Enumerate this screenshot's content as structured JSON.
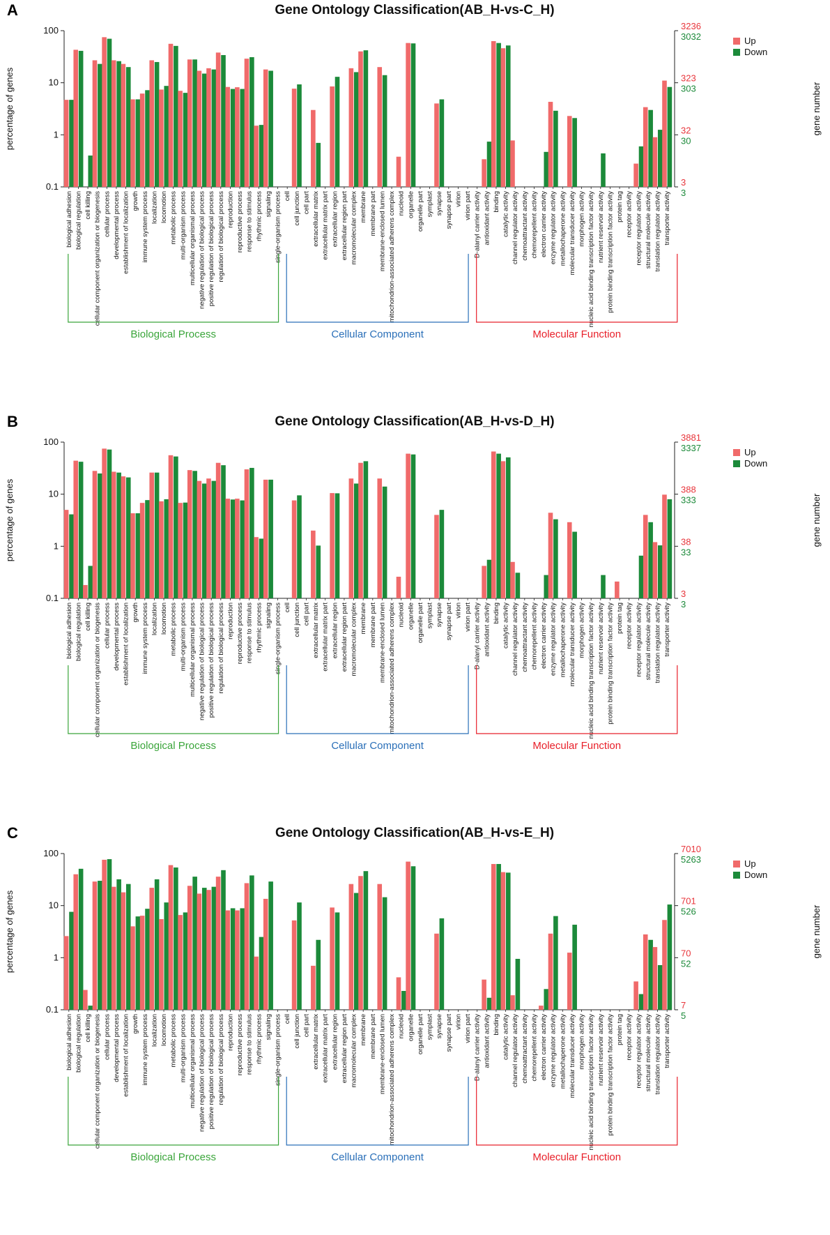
{
  "categories": [
    "biological adhesion",
    "biological regulation",
    "cell killing",
    "cellular component organization or biogenesis",
    "cellular process",
    "developmental process",
    "establishment of localization",
    "growth",
    "immune system process",
    "localization",
    "locomotion",
    "metabolic process",
    "multi-organism process",
    "multicellular organismal process",
    "negative regulation of biological process",
    "positive regulation of biological process",
    "regulation of biological process",
    "reproduction",
    "reproductive process",
    "response to stimulus",
    "rhythmic process",
    "signaling",
    "single-organism process",
    "cell",
    "cell junction",
    "cell part",
    "extracellular matrix",
    "extracellular matrix part",
    "extracellular region",
    "extracellular region part",
    "macromolecular complex",
    "membrane",
    "membrane part",
    "membrane-enclosed lumen",
    "mitochondrion-associated adherens complex",
    "nucleoid",
    "organelle",
    "organelle part",
    "symplast",
    "synapse",
    "synapse part",
    "virion",
    "virion part",
    "D-alanyl carrier activity",
    "antioxidant activity",
    "binding",
    "catalytic activity",
    "channel regulator activity",
    "chemoattractant activity",
    "chemorepellent activity",
    "electron carrier activity",
    "enzyme regulator activity",
    "metallochaperone activity",
    "molecular transducer activity",
    "morphogen activity",
    "nucleic acid binding transcription factor activity",
    "nutrient reservoir activity",
    "protein binding transcription factor activity",
    "protein tag",
    "receptor activity",
    "receptor regulator activity",
    "structural molecule activity",
    "translation regulator activity",
    "transporter activity"
  ],
  "groups": [
    {
      "name": "Biological Process",
      "start": 0,
      "end": 22,
      "color": "#3aa53a"
    },
    {
      "name": "Cellular Component",
      "start": 23,
      "end": 42,
      "color": "#2a6fb8"
    },
    {
      "name": "Molecular Function",
      "start": 43,
      "end": 64,
      "color": "#e8202a"
    }
  ],
  "legend": {
    "up": "Up",
    "down": "Down"
  },
  "colors": {
    "up": "#f06a6a",
    "down": "#1c8a3a",
    "up_axis": "#e8353b",
    "down_axis": "#1c8a3a"
  },
  "chart_data": [
    {
      "label": "A",
      "type": "bar",
      "title": "Gene Ontology Classification(AB_H-vs-C_H)",
      "ylabel": "percentage of genes",
      "y2label": "gene number",
      "yticks": [
        "100",
        "10",
        "1",
        "0.1"
      ],
      "y2ticks_up": [
        "3236",
        "323",
        "32",
        "3"
      ],
      "y2ticks_down": [
        "3032",
        "303",
        "30",
        "3"
      ],
      "ylim": [
        0.1,
        100
      ],
      "series": [
        {
          "name": "Up",
          "values": [
            4.7,
            43,
            0,
            27,
            75,
            27,
            23,
            4.8,
            6.2,
            27,
            7.4,
            56,
            7,
            28,
            17,
            19,
            38,
            8.3,
            8.2,
            29,
            1.5,
            18,
            0,
            0,
            7.7,
            0,
            3,
            0,
            8.5,
            0,
            19,
            40,
            0,
            20,
            0,
            0.38,
            58,
            0,
            0,
            4,
            0,
            0,
            0,
            0,
            0.34,
            63,
            46,
            0.78,
            0,
            0,
            0,
            4.3,
            0,
            2.3,
            0,
            0,
            0,
            0,
            0,
            0,
            0.28,
            3.4,
            0.9,
            11
          ]
        },
        {
          "name": "Down",
          "values": [
            4.7,
            41,
            0.4,
            23,
            70,
            26,
            20,
            4.8,
            7.2,
            25,
            8.7,
            51,
            6.4,
            28,
            15,
            18,
            34,
            7.6,
            7.6,
            31,
            1.55,
            17,
            0,
            0,
            9.3,
            0,
            0.7,
            0,
            13,
            0,
            16,
            42,
            0,
            14,
            0,
            0,
            57,
            0,
            0,
            4.8,
            0,
            0,
            0,
            0,
            0.74,
            58,
            52,
            0,
            0,
            0,
            0.47,
            2.9,
            0,
            2.1,
            0,
            0,
            0.44,
            0,
            0,
            0,
            0.6,
            3,
            1.25,
            8.3
          ]
        }
      ]
    },
    {
      "label": "B",
      "type": "bar",
      "title": "Gene Ontology Classification(AB_H-vs-D_H)",
      "ylabel": "percentage of genes",
      "y2label": "gene number",
      "yticks": [
        "100",
        "10",
        "1",
        "0.1"
      ],
      "y2ticks_up": [
        "3881",
        "388",
        "38",
        "3"
      ],
      "y2ticks_down": [
        "3337",
        "333",
        "33",
        "3"
      ],
      "ylim": [
        0.1,
        100
      ],
      "series": [
        {
          "name": "Up",
          "values": [
            5,
            44,
            0.18,
            28,
            75,
            27,
            22,
            4.3,
            6.8,
            26,
            7.3,
            56,
            6.8,
            29,
            18,
            20,
            40,
            8.2,
            8.2,
            30,
            1.5,
            19,
            0,
            0,
            7.6,
            0,
            2,
            0,
            10.5,
            0,
            20,
            40,
            0,
            20,
            0,
            0.26,
            60,
            0,
            0,
            4,
            0,
            0,
            0,
            0,
            0.42,
            66,
            43,
            0.5,
            0,
            0,
            0,
            4.4,
            0,
            2.9,
            0,
            0,
            0,
            0,
            0.21,
            0,
            0,
            4,
            1.2,
            9.8
          ]
        },
        {
          "name": "Down",
          "values": [
            4.1,
            42,
            0.42,
            25,
            72,
            26,
            21,
            4.3,
            7.7,
            26,
            8,
            53,
            6.9,
            28,
            16,
            18,
            36,
            7.9,
            7.6,
            32,
            1.4,
            19,
            0,
            0,
            9.5,
            0,
            1.03,
            0,
            10.4,
            0,
            16,
            43,
            0,
            14,
            0,
            0,
            58,
            0,
            0,
            5,
            0,
            0,
            0,
            0,
            0.55,
            60,
            51,
            0.31,
            0,
            0,
            0.28,
            3.3,
            0,
            1.9,
            0,
            0,
            0.28,
            0,
            0,
            0,
            0.66,
            2.9,
            1.04,
            8
          ]
        }
      ]
    },
    {
      "label": "C",
      "type": "bar",
      "title": "Gene Ontology Classification(AB_H-vs-E_H)",
      "ylabel": "percentage of genes",
      "y2label": "gene number",
      "yticks": [
        "100",
        "10",
        "1",
        "0.1"
      ],
      "y2ticks_up": [
        "7010",
        "701",
        "70",
        "7"
      ],
      "y2ticks_down": [
        "5263",
        "526",
        "52",
        "5"
      ],
      "ylim": [
        0.1,
        100
      ],
      "series": [
        {
          "name": "Up",
          "values": [
            2.6,
            40,
            0.24,
            29,
            76,
            23,
            18,
            4,
            6.4,
            22,
            5.5,
            60,
            6.6,
            24,
            17,
            20,
            36,
            8.1,
            8.1,
            27,
            1.05,
            13.5,
            0,
            0,
            5.2,
            0,
            0.7,
            0,
            9.2,
            0,
            26,
            37,
            0,
            26,
            0,
            0.42,
            70,
            0,
            0,
            2.9,
            0,
            0,
            0,
            0,
            0.38,
            63,
            44,
            0.19,
            0,
            0,
            0.12,
            2.9,
            0,
            1.25,
            0,
            0,
            0,
            0,
            0,
            0,
            0.35,
            2.8,
            1.6,
            5.3
          ]
        },
        {
          "name": "Down",
          "values": [
            7.6,
            51,
            0.12,
            30,
            78,
            32,
            26,
            6.2,
            8.7,
            32,
            11.5,
            54,
            7.4,
            36,
            22,
            23,
            48,
            8.9,
            8.9,
            38,
            2.5,
            29,
            0,
            0,
            11.5,
            0,
            2.2,
            0,
            7.4,
            0,
            17.5,
            46,
            0,
            14.5,
            0,
            0.23,
            57,
            0,
            0,
            5.7,
            0,
            0,
            0,
            0,
            0.17,
            63,
            43,
            0.95,
            0,
            0,
            0.25,
            6.3,
            0,
            4.3,
            0,
            0,
            0,
            0,
            0,
            0,
            0.2,
            2.2,
            0.72,
            10.5
          ]
        }
      ]
    }
  ]
}
